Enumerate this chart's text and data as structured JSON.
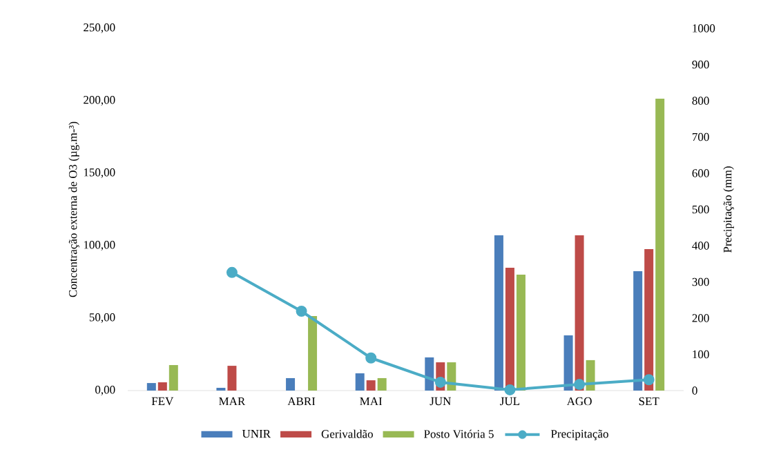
{
  "chart_data": {
    "type": "bar",
    "categories": [
      "FEV",
      "MAR",
      "ABRI",
      "MAI",
      "JUN",
      "JUL",
      "AGO",
      "SET"
    ],
    "series": [
      {
        "name": "UNIR",
        "color": "#4a7ebb",
        "values": [
          5.2,
          1.9,
          8.6,
          11.9,
          22.9,
          107.1,
          38.1,
          82.4
        ]
      },
      {
        "name": "Gerivaldão",
        "color": "#be4b48",
        "values": [
          5.7,
          17.1,
          null,
          7.1,
          19.5,
          84.8,
          107.1,
          97.6
        ]
      },
      {
        "name": "Posto Vitória 5",
        "color": "#98b954",
        "values": [
          17.6,
          null,
          51.4,
          8.6,
          19.5,
          80.0,
          21.0,
          201.4
        ]
      },
      {
        "name": "Precipitação",
        "type": "line",
        "axis": "y2",
        "color": "#4bacc6",
        "values": [
          null,
          326,
          219,
          90,
          23,
          2,
          17,
          30
        ]
      }
    ],
    "ylabel": "Concentração externa de O3 (µg.m-³)",
    "y2label": "Precipitação (mm)",
    "ylim": [
      0,
      250
    ],
    "yticks": [
      {
        "value": 0,
        "label": "0,00"
      },
      {
        "value": 50,
        "label": "50,00"
      },
      {
        "value": 100,
        "label": "100,00"
      },
      {
        "value": 150,
        "label": "150,00"
      },
      {
        "value": 200,
        "label": "200,00"
      },
      {
        "value": 250,
        "label": "250,00"
      }
    ],
    "y2lim": [
      0,
      1000
    ],
    "y2ticks": [
      0,
      100,
      200,
      300,
      400,
      500,
      600,
      700,
      800,
      900,
      1000
    ],
    "legend": "bottom",
    "marker": "circle",
    "grid": false
  }
}
